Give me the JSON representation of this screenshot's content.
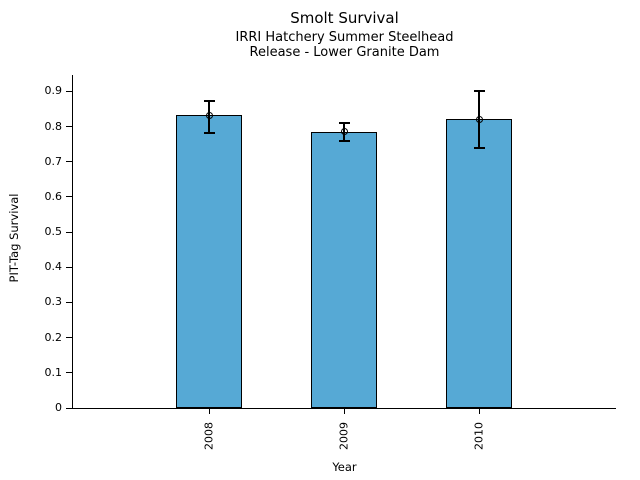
{
  "chart_data": {
    "type": "bar",
    "title": "Smolt Survival",
    "subtitle1": "IRRI Hatchery Summer Steelhead",
    "subtitle2": "Release - Lower Granite Dam",
    "xlabel": "Year",
    "ylabel": "PIT-Tag Survival",
    "categories": [
      "2008",
      "2009",
      "2010"
    ],
    "values": [
      0.833,
      0.785,
      0.821
    ],
    "error_low": [
      0.782,
      0.759,
      0.738
    ],
    "error_high": [
      0.874,
      0.81,
      0.901
    ],
    "marker": "open-circle",
    "y_tick_values": [
      0,
      0.1,
      0.2,
      0.3,
      0.4,
      0.5,
      0.6,
      0.7,
      0.8,
      0.9
    ],
    "y_tick_labels": [
      "0",
      "0.1",
      "0.2",
      "0.3",
      "0.4",
      "0.5",
      "0.6",
      "0.7",
      "0.8",
      "0.9"
    ],
    "ylim": [
      0,
      0.947
    ],
    "grid": false,
    "legend": "none",
    "bar_color": "#56a9d5",
    "bar_edge_color": "#000000",
    "error_color": "#000000",
    "text_color": "#000000"
  }
}
